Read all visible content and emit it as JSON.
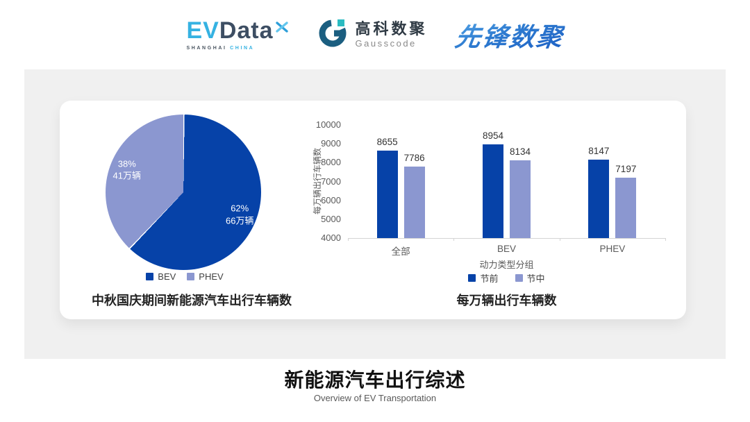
{
  "header": {
    "evdata": {
      "ev": "EV",
      "data": "Data",
      "x_icon": "x-mark",
      "sub_left": "SHANGHAI",
      "sub_right": "CHINA"
    },
    "gausscode": {
      "icon": "g-ring-mark",
      "cn": "高科数聚",
      "en": "Gausscode"
    },
    "pioneer": {
      "text": "先锋数聚"
    }
  },
  "brand": {
    "evdata_cyan": "#35B2E2",
    "evdata_navy": "#3D4E63",
    "gausscode_navy": "#1B5E80",
    "gausscode_teal": "#2ABBC1",
    "pioneer_blue": "#2E7BD0",
    "series_dark_blue": "#0642A8",
    "series_light_blue": "#8B97D0",
    "panel_gray": "#F0F0F0"
  },
  "chart_data": [
    {
      "type": "pie",
      "title": "中秋国庆期间新能源汽车出行车辆数",
      "start_angle_deg": 0,
      "slices": [
        {
          "label": "BEV",
          "percent": 62,
          "lines": [
            "62%",
            "66万辆"
          ],
          "color": "#0642A8"
        },
        {
          "label": "PHEV",
          "percent": 38,
          "lines": [
            "38%",
            "41万辆"
          ],
          "color": "#8B97D0"
        }
      ],
      "legend_position": "bottom"
    },
    {
      "type": "bar",
      "title": "每万辆出行车辆数",
      "ylabel": "每万辆出行车辆数",
      "xlabel": "动力类型分组",
      "categories": [
        "全部",
        "BEV",
        "PHEV"
      ],
      "series": [
        {
          "name": "节前",
          "color": "#0642A8",
          "values": [
            8655,
            8954,
            8147
          ]
        },
        {
          "name": "节中",
          "color": "#8B97D0",
          "values": [
            7786,
            8134,
            7197
          ]
        }
      ],
      "ylim": [
        4000,
        10000
      ],
      "yticks": [
        10000,
        9000,
        8000,
        7000,
        6000,
        5000,
        4000
      ],
      "grid": false,
      "legend_position": "bottom"
    }
  ],
  "footer": {
    "title": "新能源汽车出行综述",
    "subtitle": "Overview of EV Transportation"
  }
}
